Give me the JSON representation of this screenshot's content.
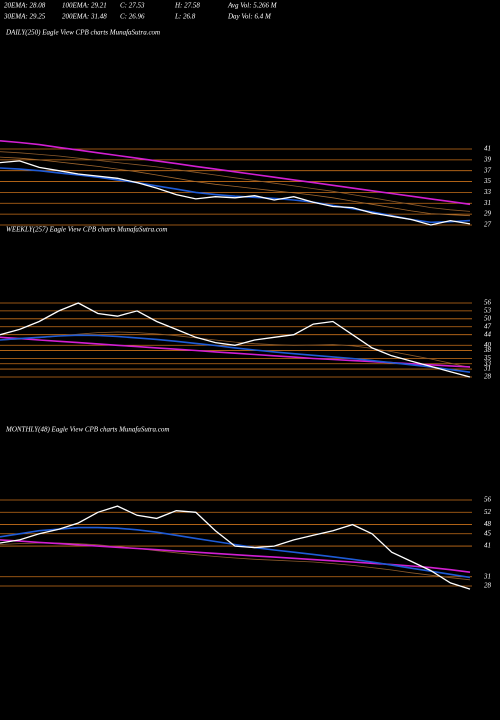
{
  "header": {
    "line1": [
      "20EMA: 28.08",
      "100EMA: 29.21",
      "C: 27.53",
      "H: 27.58",
      "Avg Vol: 5.266  M"
    ],
    "line2": [
      "30EMA: 29.25",
      "200EMA: 31.48",
      "C: 26.96",
      "L: 26.8",
      "Day Vol: 6.4  M"
    ]
  },
  "chart_data": [
    {
      "type": "line",
      "title": "DAILY(250) Eagle  View  CPB charts MunafaSutra.com",
      "categories": [
        null,
        null,
        null,
        null,
        null,
        null,
        null,
        null,
        null,
        null,
        null,
        null,
        null,
        null,
        null,
        null,
        null,
        null,
        null,
        null,
        null,
        null,
        null,
        null,
        null
      ],
      "ylim": [
        26,
        44
      ],
      "yticks": [
        41,
        39,
        37,
        35,
        33,
        31,
        29,
        27
      ],
      "grid": true,
      "series": [
        {
          "color": "#8b5a2b",
          "values": [
            40.5,
            40.3,
            40,
            39.7,
            39.3,
            38.9,
            38.5,
            38.1,
            37.7,
            37.2,
            36.7,
            36.2,
            35.7,
            35.2,
            34.7,
            34.2,
            33.7,
            33.2,
            32.6,
            32,
            31.4,
            30.8,
            30.2,
            29.8,
            29.5
          ]
        },
        {
          "color": "#a0672e",
          "values": [
            39.5,
            39.3,
            39,
            38.6,
            38.2,
            37.8,
            37.3,
            36.8,
            36.2,
            35.6,
            35,
            34.5,
            34.1,
            33.7,
            33.3,
            32.9,
            32.5,
            32,
            31.4,
            30.8,
            30.2,
            29.6,
            29.1,
            28.9,
            28.7
          ]
        },
        {
          "color": "#d21fd2",
          "values": [
            42.5,
            42.2,
            41.8,
            41.3,
            40.8,
            40.3,
            39.8,
            39.3,
            38.8,
            38.3,
            37.8,
            37.3,
            36.8,
            36.3,
            35.8,
            35.3,
            34.8,
            34.3,
            33.8,
            33.3,
            32.8,
            32.3,
            31.8,
            31.3,
            30.8
          ]
        },
        {
          "color": "#1e5bd6",
          "values": [
            37.5,
            37.3,
            37,
            36.6,
            36.2,
            35.8,
            35.3,
            34.8,
            34.2,
            33.6,
            33,
            32.6,
            32.3,
            32.1,
            31.9,
            31.6,
            31.2,
            30.6,
            30,
            29.4,
            28.7,
            28,
            27.5,
            27.6,
            27.8
          ]
        },
        {
          "color": "#ffffff",
          "values": [
            38.5,
            38.8,
            37.6,
            37,
            36.4,
            36,
            35.6,
            34.8,
            33.8,
            32.6,
            31.8,
            32.2,
            32,
            32.4,
            31.6,
            32.2,
            31.2,
            30.4,
            30.2,
            29.2,
            28.6,
            28,
            27,
            27.8,
            27.2
          ]
        }
      ]
    },
    {
      "type": "line",
      "title": "WEEKLY(257) Eagle  View  CPB charts MunafaSutra.com",
      "categories": [
        null,
        null,
        null,
        null,
        null,
        null,
        null,
        null,
        null,
        null,
        null,
        null,
        null,
        null,
        null,
        null,
        null,
        null,
        null,
        null,
        null,
        null,
        null,
        null,
        null
      ],
      "ylim": [
        25,
        60
      ],
      "yticks": [
        56,
        53,
        50,
        47,
        44,
        40,
        38,
        35,
        33,
        31,
        28
      ],
      "grid": true,
      "series": [
        {
          "color": "#8b5a2b",
          "values": [
            42,
            42.3,
            42.8,
            43.5,
            44.2,
            44.8,
            45,
            44.8,
            44.3,
            43.6,
            42.8,
            42,
            41.2,
            40.6,
            40.2,
            40,
            40.1,
            40.3,
            39.8,
            38.8,
            37.6,
            36.2,
            34.8,
            33.2,
            31.6
          ]
        },
        {
          "color": "#d21fd2",
          "values": [
            43,
            42.5,
            42,
            41.5,
            41,
            40.5,
            40,
            39.5,
            39,
            38.5,
            38,
            37.5,
            37,
            36.5,
            36,
            35.5,
            35,
            34.6,
            34.2,
            33.8,
            33.4,
            33,
            32.6,
            32.2,
            31.8
          ]
        },
        {
          "color": "#1e5bd6",
          "values": [
            42,
            42.5,
            43,
            43.5,
            43.8,
            43.7,
            43.3,
            42.8,
            42.2,
            41.5,
            40.7,
            39.9,
            39,
            38.2,
            37.5,
            36.8,
            36.2,
            35.6,
            35,
            34.2,
            33.4,
            32.6,
            31.8,
            30.8,
            29.8
          ]
        },
        {
          "color": "#ffffff",
          "values": [
            44,
            46,
            49,
            53,
            56,
            52,
            51,
            53,
            49,
            46,
            43,
            41,
            40,
            42,
            43,
            44,
            48,
            49,
            44,
            39,
            36,
            34,
            32,
            30,
            28
          ]
        }
      ]
    },
    {
      "type": "line",
      "title": "MONTHLY(48) Eagle  View  CPB charts MunafaSutra.com",
      "categories": [
        null,
        null,
        null,
        null,
        null,
        null,
        null,
        null,
        null,
        null,
        null,
        null,
        null,
        null,
        null,
        null,
        null,
        null,
        null,
        null,
        null,
        null,
        null,
        null,
        null
      ],
      "ylim": [
        25,
        60
      ],
      "yticks": [
        56,
        52,
        48,
        45,
        41,
        31,
        28
      ],
      "grid": true,
      "series": [
        {
          "color": "#8b5a2b",
          "values": [
            41.5,
            41.8,
            42,
            42,
            41.8,
            41.4,
            40.8,
            40.2,
            39.5,
            38.8,
            38.2,
            37.6,
            37.1,
            36.7,
            36.4,
            36.1,
            35.8,
            35.3,
            34.7,
            34,
            33.2,
            32.3,
            31.5,
            30.7,
            30
          ]
        },
        {
          "color": "#d21fd2",
          "values": [
            43,
            42.6,
            42.2,
            41.8,
            41.4,
            41,
            40.6,
            40.2,
            39.8,
            39.4,
            39,
            38.6,
            38.2,
            37.8,
            37.4,
            37,
            36.6,
            36.2,
            35.8,
            35.4,
            35,
            34.5,
            34,
            33.3,
            32.5
          ]
        },
        {
          "color": "#1e5bd6",
          "values": [
            44,
            45,
            46,
            46.5,
            47,
            47,
            46.8,
            46.3,
            45.5,
            44.5,
            43.5,
            42.5,
            41.5,
            40.5,
            39.7,
            39,
            38.3,
            37.5,
            36.7,
            35.8,
            34.8,
            33.8,
            32.8,
            31.8,
            30.8
          ]
        },
        {
          "color": "#ffffff",
          "values": [
            42,
            43,
            45,
            46.5,
            48.5,
            52,
            54,
            51,
            50,
            52.5,
            52,
            46,
            41,
            40.5,
            41,
            43,
            44.5,
            46,
            48,
            45,
            39,
            36,
            33,
            29,
            27
          ]
        }
      ]
    }
  ]
}
